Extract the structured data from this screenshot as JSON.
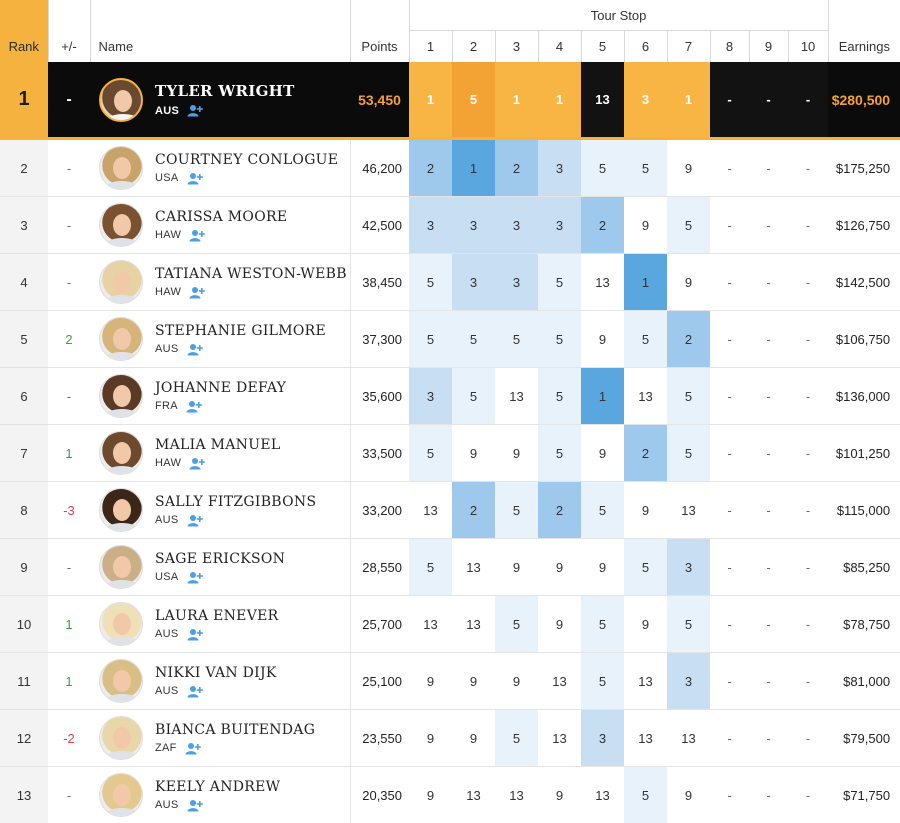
{
  "header": {
    "rank": "Rank",
    "change": "+/-",
    "name": "Name",
    "points": "Points",
    "tour_stop": "Tour Stop",
    "stops": [
      "1",
      "2",
      "3",
      "4",
      "5",
      "6",
      "7",
      "8",
      "9",
      "10"
    ],
    "earnings": "Earnings"
  },
  "leader": {
    "rank": "1",
    "change": "-",
    "name": "TYLER WRIGHT",
    "country": "AUS",
    "points": "53,450",
    "stops": [
      "1",
      "5",
      "1",
      "1",
      "13",
      "3",
      "1",
      "-",
      "-",
      "-"
    ],
    "earnings": "$280,500"
  },
  "rows": [
    {
      "rank": "2",
      "change": "-",
      "name": "COURTNEY CONLOGUE",
      "country": "USA",
      "points": "46,200",
      "stops": [
        "2",
        "1",
        "2",
        "3",
        "5",
        "5",
        "9",
        "-",
        "-",
        "-"
      ],
      "earnings": "$175,250"
    },
    {
      "rank": "3",
      "change": "-",
      "name": "CARISSA MOORE",
      "country": "HAW",
      "points": "42,500",
      "stops": [
        "3",
        "3",
        "3",
        "3",
        "2",
        "9",
        "5",
        "-",
        "-",
        "-"
      ],
      "earnings": "$126,750"
    },
    {
      "rank": "4",
      "change": "-",
      "name": "TATIANA WESTON-WEBB",
      "country": "HAW",
      "points": "38,450",
      "stops": [
        "5",
        "3",
        "3",
        "5",
        "13",
        "1",
        "9",
        "-",
        "-",
        "-"
      ],
      "earnings": "$142,500"
    },
    {
      "rank": "5",
      "change": "2",
      "name": "STEPHANIE GILMORE",
      "country": "AUS",
      "points": "37,300",
      "stops": [
        "5",
        "5",
        "5",
        "5",
        "9",
        "5",
        "2",
        "-",
        "-",
        "-"
      ],
      "earnings": "$106,750"
    },
    {
      "rank": "6",
      "change": "-",
      "name": "JOHANNE DEFAY",
      "country": "FRA",
      "points": "35,600",
      "stops": [
        "3",
        "5",
        "13",
        "5",
        "1",
        "13",
        "5",
        "-",
        "-",
        "-"
      ],
      "earnings": "$136,000"
    },
    {
      "rank": "7",
      "change": "1",
      "name": "MALIA MANUEL",
      "country": "HAW",
      "points": "33,500",
      "stops": [
        "5",
        "9",
        "9",
        "5",
        "9",
        "2",
        "5",
        "-",
        "-",
        "-"
      ],
      "earnings": "$101,250"
    },
    {
      "rank": "8",
      "change": "-3",
      "name": "SALLY FITZGIBBONS",
      "country": "AUS",
      "points": "33,200",
      "stops": [
        "13",
        "2",
        "5",
        "2",
        "5",
        "9",
        "13",
        "-",
        "-",
        "-"
      ],
      "earnings": "$115,000"
    },
    {
      "rank": "9",
      "change": "-",
      "name": "SAGE ERICKSON",
      "country": "USA",
      "points": "28,550",
      "stops": [
        "5",
        "13",
        "9",
        "9",
        "9",
        "5",
        "3",
        "-",
        "-",
        "-"
      ],
      "earnings": "$85,250"
    },
    {
      "rank": "10",
      "change": "1",
      "name": "LAURA ENEVER",
      "country": "AUS",
      "points": "25,700",
      "stops": [
        "13",
        "13",
        "5",
        "9",
        "5",
        "9",
        "5",
        "-",
        "-",
        "-"
      ],
      "earnings": "$78,750"
    },
    {
      "rank": "11",
      "change": "1",
      "name": "NIKKI VAN DIJK",
      "country": "AUS",
      "points": "25,100",
      "stops": [
        "9",
        "9",
        "9",
        "13",
        "5",
        "13",
        "3",
        "-",
        "-",
        "-"
      ],
      "earnings": "$81,000"
    },
    {
      "rank": "12",
      "change": "-2",
      "name": "BIANCA BUITENDAG",
      "country": "ZAF",
      "points": "23,550",
      "stops": [
        "9",
        "9",
        "5",
        "13",
        "3",
        "13",
        "13",
        "-",
        "-",
        "-"
      ],
      "earnings": "$79,500"
    },
    {
      "rank": "13",
      "change": "-",
      "name": "KEELY ANDREW",
      "country": "AUS",
      "points": "20,350",
      "stops": [
        "9",
        "13",
        "13",
        "9",
        "13",
        "5",
        "9",
        "-",
        "-",
        "-"
      ],
      "earnings": "$71,750"
    }
  ],
  "colors": {
    "accent_orange": "#f6b23f",
    "leader_background": "#0b0b0b",
    "positive_change": "#3aa53a",
    "negative_change": "#dd4444",
    "follow_icon": "#4aa0e6"
  },
  "icons": {
    "follow": "add-follow-icon",
    "avatar": "surfer-avatar-icon"
  }
}
